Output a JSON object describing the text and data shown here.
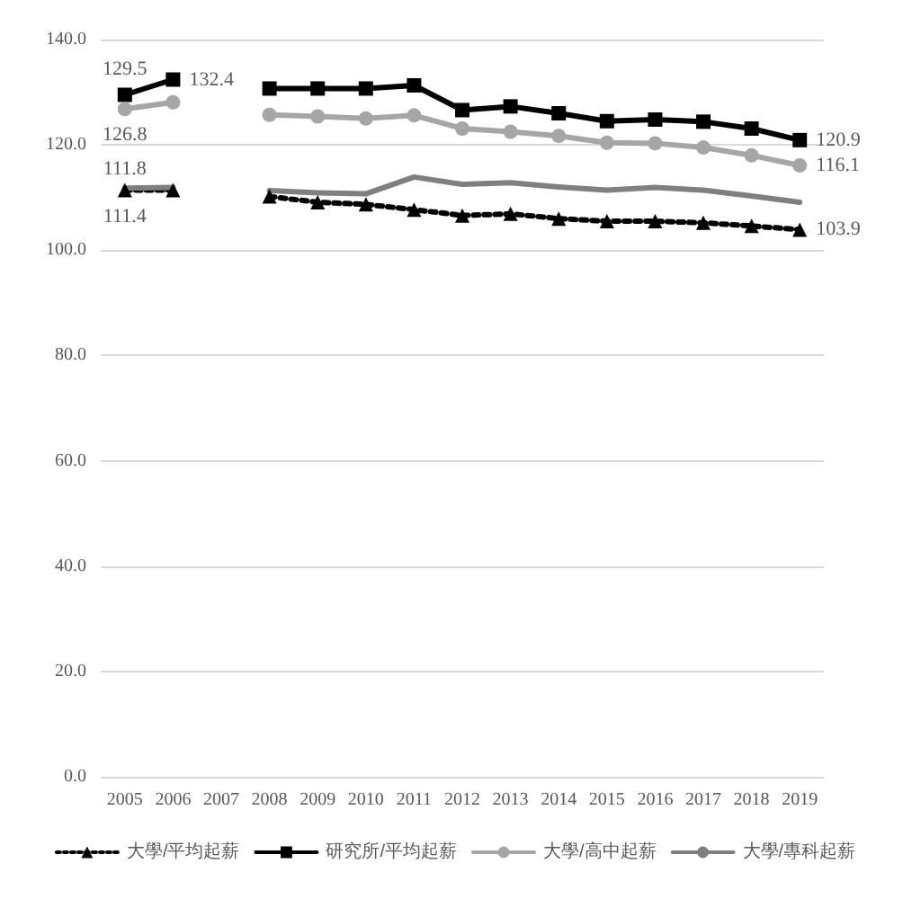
{
  "chart_data": {
    "type": "line",
    "categories": [
      "2005",
      "2006",
      "2007",
      "2008",
      "2009",
      "2010",
      "2011",
      "2012",
      "2013",
      "2014",
      "2015",
      "2016",
      "2017",
      "2018",
      "2019"
    ],
    "series": [
      {
        "name": "大學/平均起薪",
        "color": "#000000",
        "marker": "triangle",
        "line_style": "dotted",
        "values": [
          111.4,
          111.4,
          null,
          110.2,
          109.1,
          108.7,
          107.7,
          106.6,
          106.9,
          106.0,
          105.5,
          105.5,
          105.2,
          104.6,
          103.9
        ],
        "value_labels": [
          "111.4",
          null,
          null,
          null,
          null,
          null,
          null,
          null,
          null,
          null,
          null,
          null,
          null,
          null,
          "103.9"
        ]
      },
      {
        "name": "研究所/平均起薪",
        "color": "#000000",
        "marker": "square",
        "line_style": "solid",
        "values": [
          129.5,
          132.4,
          null,
          130.7,
          130.7,
          130.7,
          131.3,
          126.6,
          127.3,
          126.0,
          124.5,
          124.8,
          124.4,
          123.1,
          120.9
        ],
        "value_labels": [
          "129.5",
          "132.4",
          null,
          null,
          null,
          null,
          null,
          null,
          null,
          null,
          null,
          null,
          null,
          null,
          "120.9"
        ]
      },
      {
        "name": "大學/高中起薪",
        "color": "#a6a6a6",
        "marker": "circle",
        "line_style": "solid",
        "values": [
          126.8,
          128.1,
          null,
          125.7,
          125.4,
          125.0,
          125.6,
          123.1,
          122.5,
          121.7,
          120.4,
          120.3,
          119.5,
          118.0,
          116.1
        ],
        "value_labels": [
          "126.8",
          null,
          null,
          null,
          null,
          null,
          null,
          null,
          null,
          null,
          null,
          null,
          null,
          null,
          "116.1"
        ]
      },
      {
        "name": "大學/專科起薪",
        "color": "#7f7f7f",
        "marker": "none",
        "line_style": "solid",
        "values": [
          111.8,
          111.9,
          null,
          111.3,
          110.9,
          110.7,
          113.9,
          112.5,
          112.8,
          112.0,
          111.4,
          111.9,
          111.4,
          110.3,
          109.1
        ],
        "value_labels": [
          "111.8",
          null,
          null,
          null,
          null,
          null,
          null,
          null,
          null,
          null,
          null,
          null,
          null,
          null,
          null
        ]
      }
    ],
    "ylim": [
      0,
      140
    ],
    "yticks": [
      {
        "value": 0,
        "label": "0.0"
      },
      {
        "value": 20,
        "label": "20.0"
      },
      {
        "value": 40,
        "label": "40.0"
      },
      {
        "value": 60,
        "label": "60.0"
      },
      {
        "value": 80,
        "label": "80.0"
      },
      {
        "value": 100,
        "label": "100.0"
      },
      {
        "value": 120,
        "label": "120.0"
      },
      {
        "value": 140,
        "label": "140.0"
      }
    ],
    "grid": "y",
    "legend": "bottom"
  }
}
